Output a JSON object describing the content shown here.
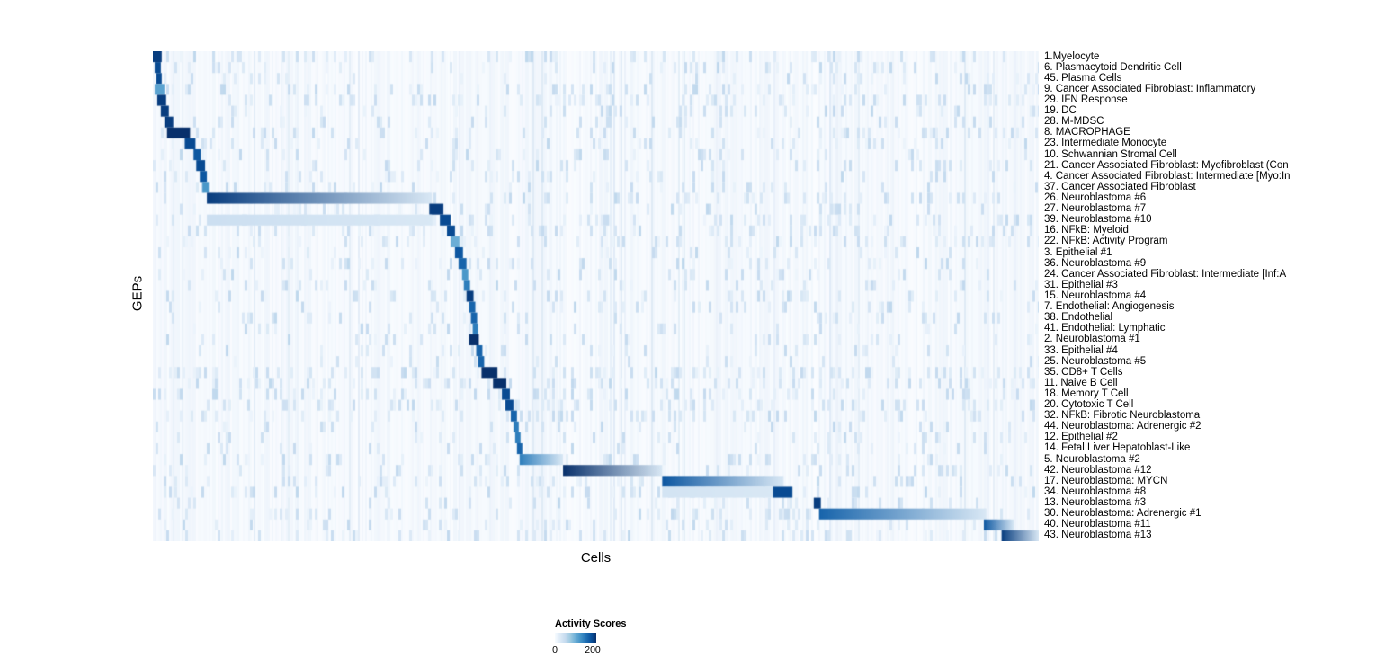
{
  "chart_data": {
    "type": "heatmap",
    "title": "",
    "xlabel": "Cells",
    "ylabel": "GEPs",
    "value_label": "Activity Scores",
    "value_range": [
      0,
      200
    ],
    "legend": {
      "title": "Activity Scores",
      "ticks": [
        "0",
        "200"
      ],
      "position": "bottom"
    },
    "grid": false,
    "colormap": [
      "#f7fbff",
      "#deebf7",
      "#c6dbef",
      "#9ecae1",
      "#6baed6",
      "#4292c6",
      "#2171b5",
      "#08519c",
      "#08306b"
    ],
    "description": "GEP activity score heatmap; each row is a gene expression program (GEP), columns are single cells ordered so that each program's high-activity cell block forms a diagonal. 'from'/'to' are fractions of the cell axis covered by each high-activity block; 'intensity' is fraction of the 0-200 color scale; 'fade' means the block fades from dark (left) to light (right).",
    "rows": [
      {
        "label": "1.Myelocyte",
        "tint": 0.1,
        "blocks": [
          {
            "from": 0.0,
            "to": 0.01,
            "intensity": 0.95
          }
        ]
      },
      {
        "label": "6. Plasmacytoid Dendritic Cell",
        "tint": 0.05,
        "blocks": [
          {
            "from": 0.002,
            "to": 0.009,
            "intensity": 0.9
          }
        ]
      },
      {
        "label": "45. Plasma Cells",
        "tint": 0.04,
        "blocks": [
          {
            "from": 0.004,
            "to": 0.01,
            "intensity": 0.9
          }
        ]
      },
      {
        "label": "9. Cancer Associated Fibroblast: Inflammatory",
        "tint": 0.1,
        "blocks": [
          {
            "from": 0.002,
            "to": 0.013,
            "intensity": 0.55
          }
        ]
      },
      {
        "label": "29. IFN Response",
        "tint": 0.12,
        "blocks": [
          {
            "from": 0.005,
            "to": 0.015,
            "intensity": 0.95
          }
        ]
      },
      {
        "label": "19. DC",
        "tint": 0.08,
        "blocks": [
          {
            "from": 0.009,
            "to": 0.018,
            "intensity": 0.95
          }
        ]
      },
      {
        "label": "28. M-MDSC",
        "tint": 0.1,
        "blocks": [
          {
            "from": 0.013,
            "to": 0.023,
            "intensity": 0.95
          }
        ]
      },
      {
        "label": "8. MACROPHAGE",
        "tint": 0.14,
        "blocks": [
          {
            "from": 0.016,
            "to": 0.042,
            "intensity": 1.0
          }
        ]
      },
      {
        "label": "23. Intermediate Monocyte",
        "tint": 0.1,
        "blocks": [
          {
            "from": 0.036,
            "to": 0.048,
            "intensity": 0.9
          }
        ]
      },
      {
        "label": "10. Schwannian Stromal Cell",
        "tint": 0.05,
        "blocks": [
          {
            "from": 0.046,
            "to": 0.054,
            "intensity": 0.85
          }
        ]
      },
      {
        "label": "21. Cancer Associated Fibroblast: Myofibroblast (Con",
        "tint": 0.06,
        "blocks": [
          {
            "from": 0.049,
            "to": 0.059,
            "intensity": 0.9
          }
        ]
      },
      {
        "label": "4. Cancer Associated Fibroblast: Intermediate [Myo:In",
        "tint": 0.06,
        "blocks": [
          {
            "from": 0.053,
            "to": 0.061,
            "intensity": 0.85
          }
        ]
      },
      {
        "label": "37. Cancer Associated Fibroblast",
        "tint": 0.05,
        "blocks": [
          {
            "from": 0.056,
            "to": 0.063,
            "intensity": 0.6
          }
        ]
      },
      {
        "label": "26. Neuroblastoma #6",
        "tint": 0.12,
        "blocks": [
          {
            "from": 0.061,
            "to": 0.315,
            "intensity": 0.95,
            "fade": true
          }
        ]
      },
      {
        "label": "27. Neuroblastoma #7",
        "tint": 0.06,
        "blocks": [
          {
            "from": 0.312,
            "to": 0.328,
            "intensity": 0.95
          }
        ]
      },
      {
        "label": "39. Neuroblastoma #10",
        "tint": 0.12,
        "blocks": [
          {
            "from": 0.061,
            "to": 0.315,
            "intensity": 0.22,
            "fade": true
          },
          {
            "from": 0.324,
            "to": 0.336,
            "intensity": 0.9
          }
        ]
      },
      {
        "label": "16. NFkB: Myeloid",
        "tint": 0.14,
        "blocks": [
          {
            "from": 0.332,
            "to": 0.341,
            "intensity": 0.9
          }
        ]
      },
      {
        "label": "22. NFkB: Activity Program",
        "tint": 0.12,
        "blocks": [
          {
            "from": 0.336,
            "to": 0.346,
            "intensity": 0.5
          }
        ]
      },
      {
        "label": "3. Epithelial #1",
        "tint": 0.05,
        "blocks": [
          {
            "from": 0.341,
            "to": 0.35,
            "intensity": 0.85
          }
        ]
      },
      {
        "label": "36. Neuroblastoma #9",
        "tint": 0.08,
        "blocks": [
          {
            "from": 0.345,
            "to": 0.354,
            "intensity": 0.8
          }
        ]
      },
      {
        "label": "24. Cancer Associated Fibroblast: Intermediate [Inf:A",
        "tint": 0.06,
        "blocks": [
          {
            "from": 0.349,
            "to": 0.356,
            "intensity": 0.6
          }
        ]
      },
      {
        "label": "31. Epithelial #3",
        "tint": 0.04,
        "blocks": [
          {
            "from": 0.351,
            "to": 0.358,
            "intensity": 0.7
          }
        ]
      },
      {
        "label": "15. Neuroblastoma #4",
        "tint": 0.06,
        "blocks": [
          {
            "from": 0.354,
            "to": 0.362,
            "intensity": 0.95
          }
        ]
      },
      {
        "label": "7. Endothelial: Angiogenesis",
        "tint": 0.05,
        "blocks": [
          {
            "from": 0.357,
            "to": 0.364,
            "intensity": 0.8
          }
        ]
      },
      {
        "label": "38. Endothelial",
        "tint": 0.04,
        "blocks": [
          {
            "from": 0.359,
            "to": 0.366,
            "intensity": 0.8
          }
        ]
      },
      {
        "label": "41. Endothelial: Lymphatic",
        "tint": 0.04,
        "blocks": [
          {
            "from": 0.361,
            "to": 0.367,
            "intensity": 0.7
          }
        ]
      },
      {
        "label": "2. Neuroblastoma #1",
        "tint": 0.06,
        "blocks": [
          {
            "from": 0.357,
            "to": 0.368,
            "intensity": 1.0
          }
        ]
      },
      {
        "label": "33. Epithelial #4",
        "tint": 0.04,
        "blocks": [
          {
            "from": 0.365,
            "to": 0.372,
            "intensity": 0.8
          }
        ]
      },
      {
        "label": "25. Neuroblastoma #5",
        "tint": 0.06,
        "blocks": [
          {
            "from": 0.367,
            "to": 0.374,
            "intensity": 0.8
          }
        ]
      },
      {
        "label": "35. CD8+ T Cells",
        "tint": 0.16,
        "blocks": [
          {
            "from": 0.371,
            "to": 0.389,
            "intensity": 1.0
          }
        ]
      },
      {
        "label": "11. Naive B Cell",
        "tint": 0.14,
        "blocks": [
          {
            "from": 0.384,
            "to": 0.399,
            "intensity": 1.0
          }
        ]
      },
      {
        "label": "18. Memory T Cell",
        "tint": 0.12,
        "blocks": [
          {
            "from": 0.394,
            "to": 0.403,
            "intensity": 0.9
          }
        ]
      },
      {
        "label": "20. Cytotoxic T Cell",
        "tint": 0.12,
        "blocks": [
          {
            "from": 0.398,
            "to": 0.407,
            "intensity": 0.9
          }
        ]
      },
      {
        "label": "32. NFkB: Fibrotic Neuroblastoma",
        "tint": 0.12,
        "blocks": [
          {
            "from": 0.404,
            "to": 0.411,
            "intensity": 0.8
          }
        ]
      },
      {
        "label": "44. Neuroblastoma: Adrenergic #2",
        "tint": 0.08,
        "blocks": [
          {
            "from": 0.407,
            "to": 0.413,
            "intensity": 0.7
          }
        ]
      },
      {
        "label": "12. Epithelial #2",
        "tint": 0.04,
        "blocks": [
          {
            "from": 0.409,
            "to": 0.415,
            "intensity": 0.7
          }
        ]
      },
      {
        "label": "14. Fetal Liver Hepatoblast-Like",
        "tint": 0.05,
        "blocks": [
          {
            "from": 0.411,
            "to": 0.417,
            "intensity": 0.8
          }
        ]
      },
      {
        "label": "5. Neuroblastoma #2",
        "tint": 0.08,
        "blocks": [
          {
            "from": 0.414,
            "to": 0.463,
            "intensity": 0.7,
            "fade": true
          }
        ]
      },
      {
        "label": "42. Neuroblastoma #12",
        "tint": 0.08,
        "blocks": [
          {
            "from": 0.463,
            "to": 0.575,
            "intensity": 1.0,
            "fade": true
          }
        ]
      },
      {
        "label": "17. Neuroblastoma: MYCN",
        "tint": 0.1,
        "blocks": [
          {
            "from": 0.575,
            "to": 0.712,
            "intensity": 0.85,
            "fade": true
          }
        ]
      },
      {
        "label": "34. Neuroblastoma #8",
        "tint": 0.1,
        "blocks": [
          {
            "from": 0.575,
            "to": 0.7,
            "intensity": 0.18,
            "fade": true
          },
          {
            "from": 0.7,
            "to": 0.722,
            "intensity": 0.9
          }
        ]
      },
      {
        "label": "13. Neuroblastoma #3",
        "tint": 0.06,
        "blocks": [
          {
            "from": 0.746,
            "to": 0.754,
            "intensity": 0.95
          }
        ]
      },
      {
        "label": "30. Neuroblastoma: Adrenergic #1",
        "tint": 0.12,
        "blocks": [
          {
            "from": 0.752,
            "to": 0.94,
            "intensity": 0.8,
            "fade": true
          }
        ]
      },
      {
        "label": "40. Neuroblastoma #11",
        "tint": 0.08,
        "blocks": [
          {
            "from": 0.938,
            "to": 0.972,
            "intensity": 0.85,
            "fade": true
          }
        ]
      },
      {
        "label": "43. Neuroblastoma #13",
        "tint": 0.12,
        "blocks": [
          {
            "from": 0.958,
            "to": 1.0,
            "intensity": 0.95,
            "fade": true
          }
        ]
      }
    ]
  }
}
